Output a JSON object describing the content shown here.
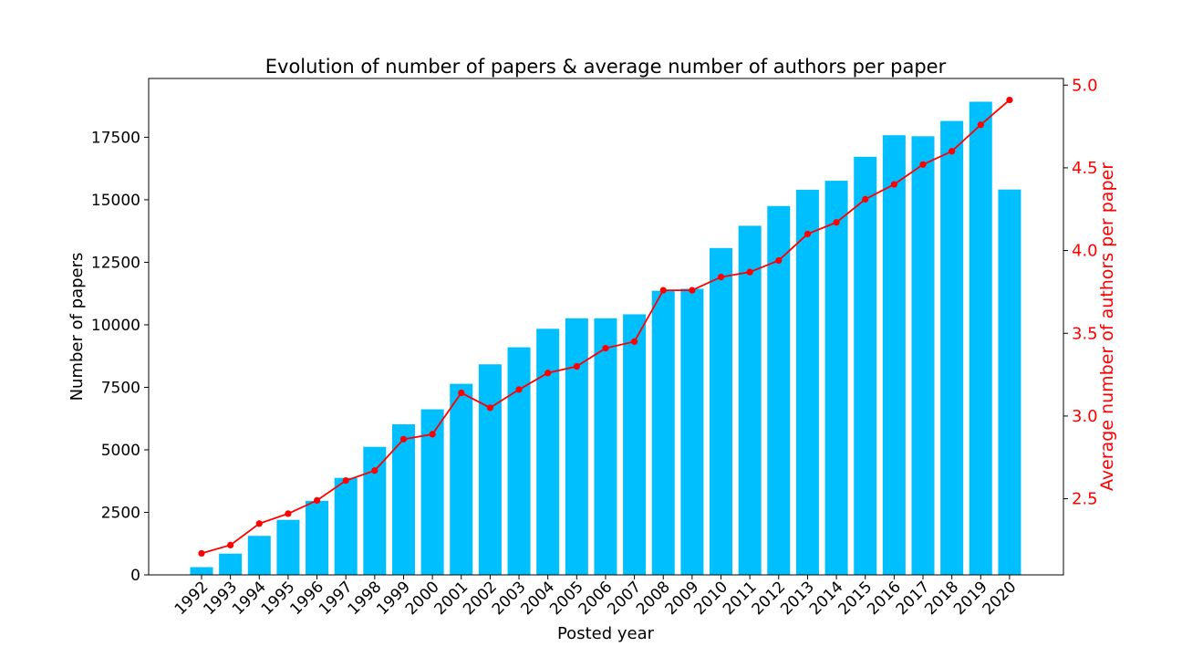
{
  "chart_data": {
    "type": "bar",
    "title": "Evolution of number of papers & average number of authors per paper",
    "xlabel": "Posted year",
    "ylabel": "Number of papers",
    "y2label": "Average number of authors per paper",
    "categories": [
      "1992",
      "1993",
      "1994",
      "1995",
      "1996",
      "1997",
      "1998",
      "1999",
      "2000",
      "2001",
      "2002",
      "2003",
      "2004",
      "2005",
      "2006",
      "2007",
      "2008",
      "2009",
      "2010",
      "2011",
      "2012",
      "2013",
      "2014",
      "2015",
      "2016",
      "2017",
      "2018",
      "2019",
      "2020"
    ],
    "series": [
      {
        "type": "bar",
        "axis": "left",
        "color": "#00bfff",
        "values": [
          310,
          850,
          1560,
          2200,
          2960,
          3880,
          5120,
          6020,
          6620,
          7640,
          8420,
          9100,
          9840,
          10260,
          10260,
          10420,
          11360,
          11440,
          13070,
          13960,
          14750,
          15400,
          15760,
          16720,
          17580,
          17540,
          18150,
          18920,
          15410
        ]
      },
      {
        "type": "line",
        "axis": "right",
        "color": "#ff0000",
        "marker": "circle",
        "values": [
          2.17,
          2.22,
          2.35,
          2.41,
          2.49,
          2.61,
          2.67,
          2.86,
          2.89,
          3.14,
          3.05,
          3.16,
          3.26,
          3.3,
          3.41,
          3.45,
          3.76,
          3.76,
          3.84,
          3.87,
          3.94,
          4.1,
          4.17,
          4.31,
          4.4,
          4.52,
          4.6,
          4.76,
          4.91
        ]
      }
    ],
    "ylim": [
      0,
      19850
    ],
    "yticks": [
      0,
      2500,
      5000,
      7500,
      10000,
      12500,
      15000,
      17500
    ],
    "y2lim": [
      2.04,
      5.04
    ],
    "y2ticks": [
      2.5,
      3.0,
      3.5,
      4.0,
      4.5,
      5.0
    ],
    "y2ticklabels": [
      "2.5",
      "3.0",
      "3.5",
      "4.0",
      "4.5",
      "5.0"
    ],
    "grid": false,
    "x_tick_rotation_deg": 45
  }
}
